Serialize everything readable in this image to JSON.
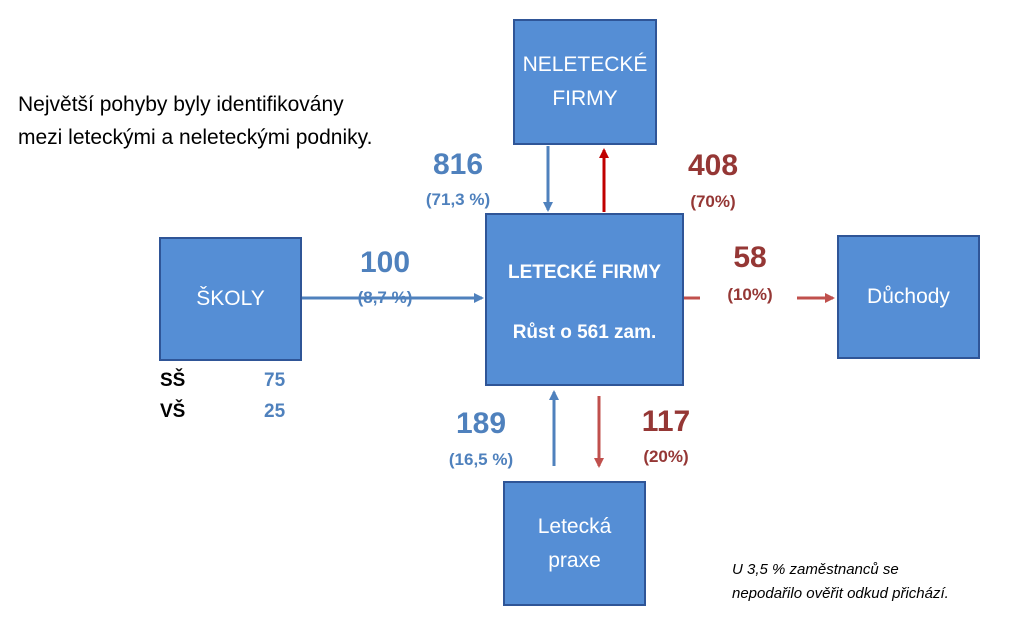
{
  "intro": {
    "line1": "Největší pohyby byly identifikovány",
    "line2": "mezi leteckými a neleteckými podniky."
  },
  "nodes": {
    "neletecke": {
      "line1": "NELETECKÉ",
      "line2": "FIRMY"
    },
    "skoly": {
      "label": "ŠKOLY"
    },
    "letecke": {
      "title": "LETECKÉ FIRMY",
      "subtitle": "Růst o 561 zam."
    },
    "duchody": {
      "label": "Důchody"
    },
    "praxe": {
      "line1": "Letecká",
      "line2": "praxe"
    }
  },
  "flows": {
    "neletecke_in": {
      "value": "816",
      "pct": "(71,3 %)"
    },
    "neletecke_out": {
      "value": "408",
      "pct": "(70%)"
    },
    "skoly_in": {
      "value": "100",
      "pct": "(8,7 %)"
    },
    "duchody_out": {
      "value": "58",
      "pct": "(10%)"
    },
    "praxe_in": {
      "value": "189",
      "pct": "(16,5 %)"
    },
    "praxe_out": {
      "value": "117",
      "pct": "(20%)"
    }
  },
  "school_breakdown": [
    {
      "label": "SŠ",
      "value": "75"
    },
    {
      "label": "VŠ",
      "value": "25"
    }
  ],
  "footnote": {
    "line1": "U 3,5 % zaměstnanců se",
    "line2": "nepodařilo ověřit odkud přichází."
  },
  "colors": {
    "box": "#558ED5",
    "inflow": "#4F81BD",
    "outflow_dark": "#C00000",
    "outflow": "#C0504D",
    "outflow_text": "#953735"
  }
}
